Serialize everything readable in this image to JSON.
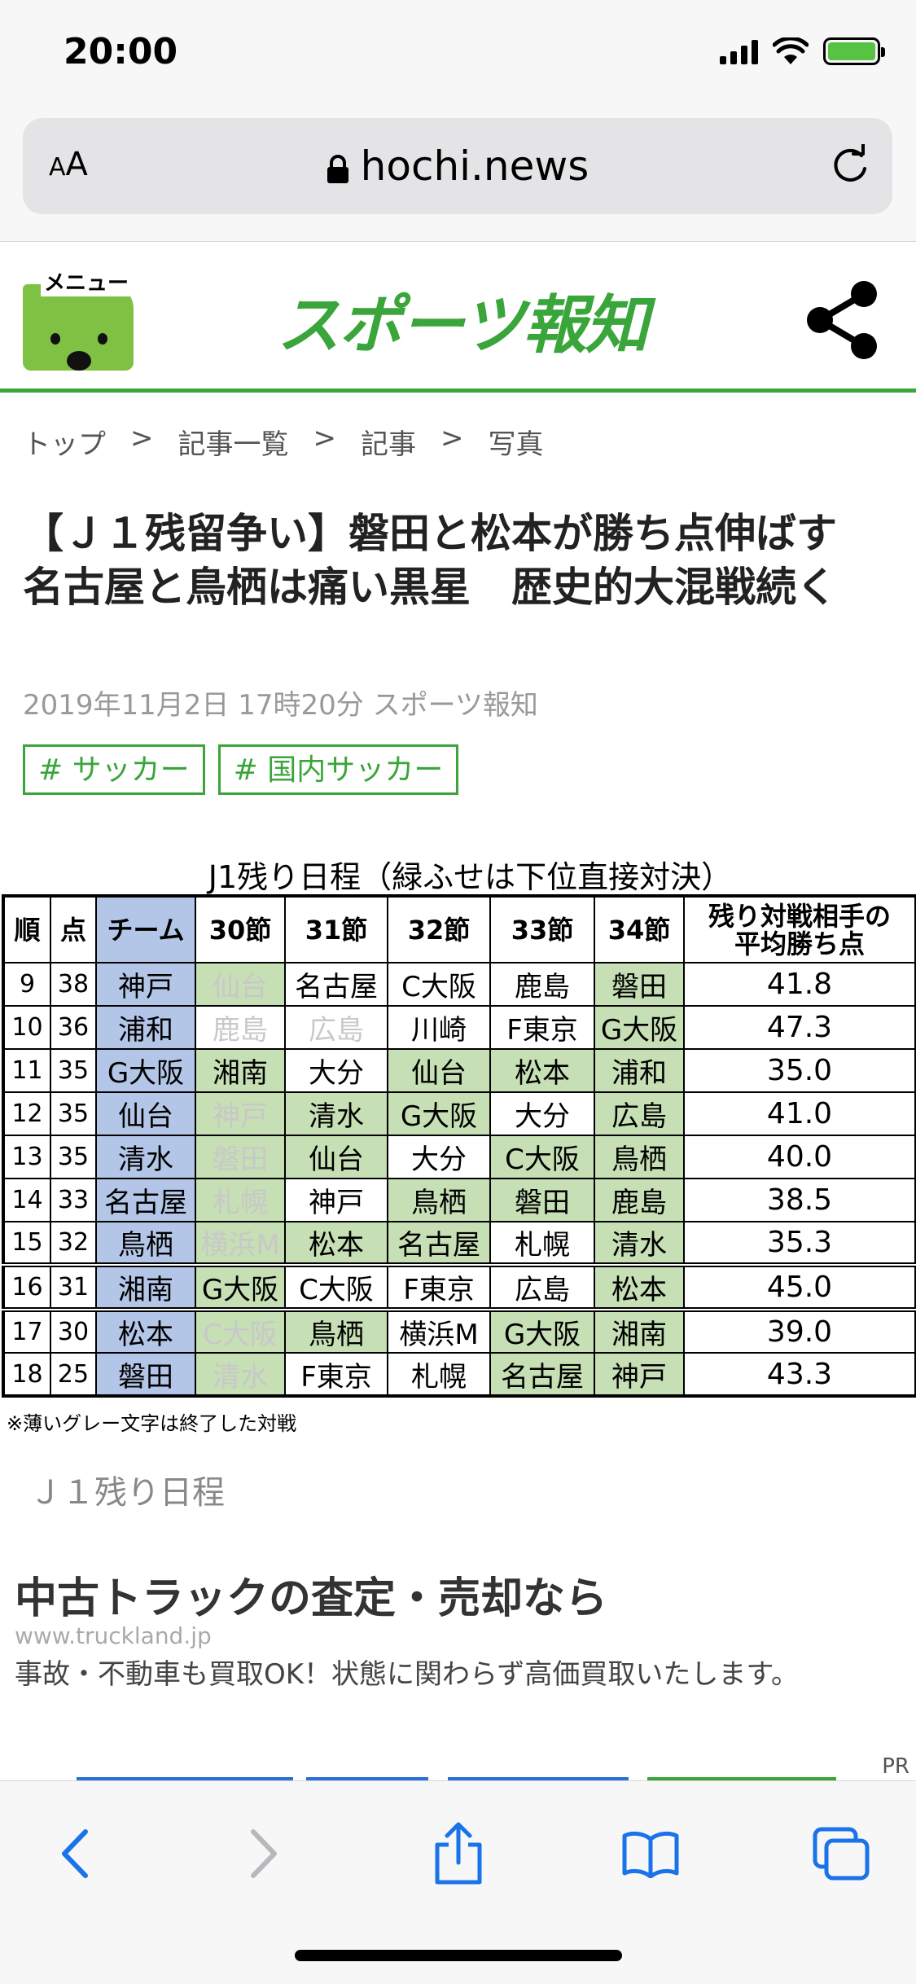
{
  "status_bar": {
    "time": "20:00",
    "battery_color": "#56c442"
  },
  "browser": {
    "text_size_label_small": "A",
    "text_size_label_large": "A",
    "url": "hochi.news"
  },
  "site": {
    "menu_label": "メニュー",
    "logo_text": "スポーツ報知",
    "brand_color": "#3aa53a"
  },
  "breadcrumb": {
    "items": [
      "トップ",
      "記事一覧",
      "記事",
      "写真"
    ],
    "separator": ">"
  },
  "article": {
    "title": "【Ｊ１残留争い】磐田と松本が勝ち点伸ばす　名古屋と鳥栖は痛い黒星　歴史的大混戦続く",
    "meta": "2019年11月2日 17時20分  スポーツ報知",
    "tags": [
      "# サッカー",
      "# 国内サッカー"
    ]
  },
  "schedule_table": {
    "title": "J1残り日程（緑ふせは下位直接対決）",
    "headers": [
      "順",
      "点",
      "チーム",
      "30節",
      "31節",
      "32節",
      "33節",
      "34節",
      "残り対戦相手の\n平均勝ち点"
    ],
    "rows": [
      {
        "rank": "9",
        "pts": "38",
        "team": "神戸",
        "m30": "仙台",
        "m31": "名古屋",
        "m32": "C大阪",
        "m33": "鹿島",
        "m34": "磐田",
        "avg": "41.8"
      },
      {
        "rank": "10",
        "pts": "36",
        "team": "浦和",
        "m30": "鹿島",
        "m31": "広島",
        "m32": "川崎",
        "m33": "F東京",
        "m34": "G大阪",
        "avg": "47.3"
      },
      {
        "rank": "11",
        "pts": "35",
        "team": "G大阪",
        "m30": "湘南",
        "m31": "大分",
        "m32": "仙台",
        "m33": "松本",
        "m34": "浦和",
        "avg": "35.0"
      },
      {
        "rank": "12",
        "pts": "35",
        "team": "仙台",
        "m30": "神戸",
        "m31": "清水",
        "m32": "G大阪",
        "m33": "大分",
        "m34": "広島",
        "avg": "41.0"
      },
      {
        "rank": "13",
        "pts": "35",
        "team": "清水",
        "m30": "磐田",
        "m31": "仙台",
        "m32": "大分",
        "m33": "C大阪",
        "m34": "鳥栖",
        "avg": "40.0"
      },
      {
        "rank": "14",
        "pts": "33",
        "team": "名古屋",
        "m30": "札幌",
        "m31": "神戸",
        "m32": "鳥栖",
        "m33": "磐田",
        "m34": "鹿島",
        "avg": "38.5"
      },
      {
        "rank": "15",
        "pts": "32",
        "team": "鳥栖",
        "m30": "横浜M",
        "m31": "松本",
        "m32": "名古屋",
        "m33": "札幌",
        "m34": "清水",
        "avg": "35.3"
      },
      {
        "rank": "16",
        "pts": "31",
        "team": "湘南",
        "m30": "G大阪",
        "m31": "C大阪",
        "m32": "F東京",
        "m33": "広島",
        "m34": "松本",
        "avg": "45.0"
      },
      {
        "rank": "17",
        "pts": "30",
        "team": "松本",
        "m30": "C大阪",
        "m31": "鳥栖",
        "m32": "横浜M",
        "m33": "G大阪",
        "m34": "湘南",
        "avg": "39.0"
      },
      {
        "rank": "18",
        "pts": "25",
        "team": "磐田",
        "m30": "清水",
        "m31": "F東京",
        "m32": "札幌",
        "m33": "名古屋",
        "m34": "神戸",
        "avg": "43.3"
      }
    ],
    "note": "※薄いグレー文字は終了した対戦",
    "caption": "Ｊ１残り日程",
    "colors": {
      "team_column": "#b4c6e7",
      "direct_match": "#c6dfb4",
      "finished_text": "#c8c8c8"
    }
  },
  "ad": {
    "title": "中古トラックの査定・売却なら",
    "url": "www.truckland.jp",
    "description": "事故・不動車も買取OK！状態に関わらず高価買取いたします。",
    "pr_label": "PR"
  },
  "toolbar": {
    "icons": [
      "back-icon",
      "forward-icon",
      "share-icon",
      "bookmarks-icon",
      "tabs-icon"
    ],
    "accent": "#1a73e8"
  }
}
